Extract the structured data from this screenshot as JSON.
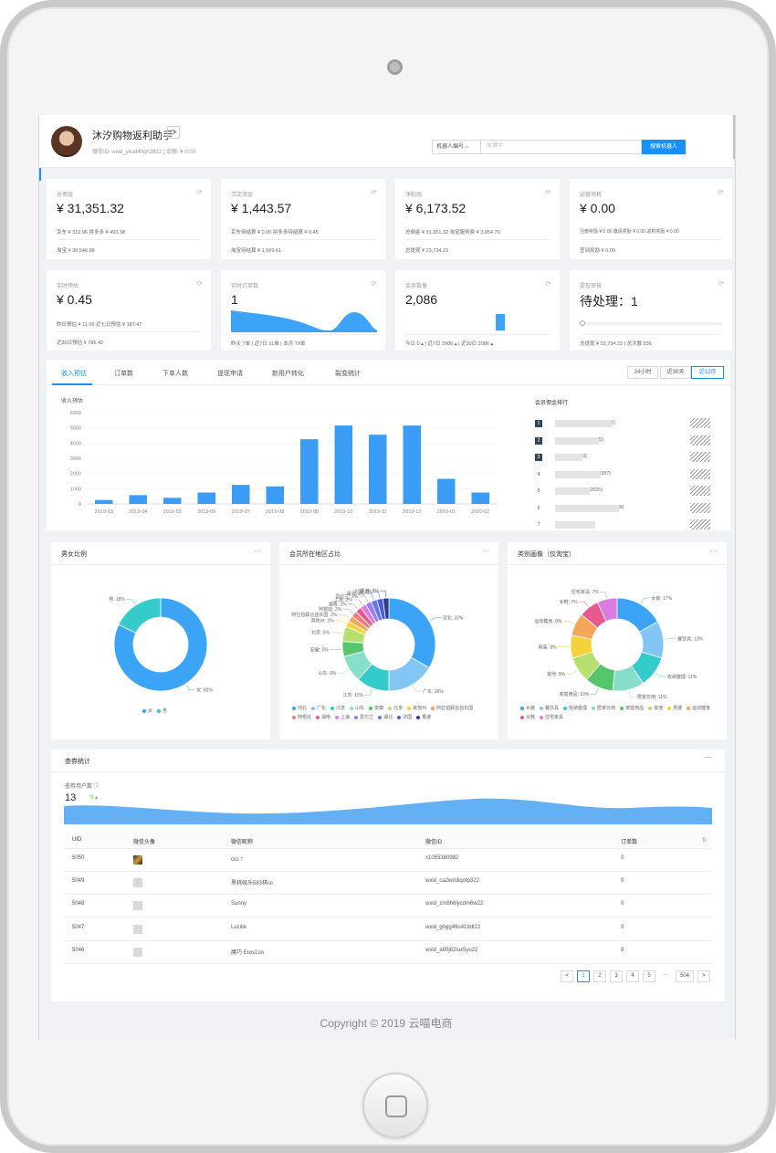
{
  "header": {
    "app_name": "沐汐购物返利助手",
    "sub": "微信ID: wxid_ykud40qh2822  |  余额: ¥ 0.00",
    "search_select": "机器人编号 ⌵",
    "search_placeholder": "关键字",
    "search_button": "搜索机器人"
  },
  "stats": [
    {
      "title": "总佣金",
      "value": "¥ 31,351.32",
      "line1": "京东 ¥ 310.96    拼多多 ¥ 493.38",
      "line2": "淘宝 ¥ 30,546.98"
    },
    {
      "title": "沉淀资金",
      "value": "¥ 1,443.57",
      "line1": "京东待结算 ¥ 0.00    拼多多待结算 ¥ 0.45",
      "line2": "淘宝待结算 ¥ 1,569.61"
    },
    {
      "title": "净利润",
      "value": "¥ 6,173.52",
      "line1": "总佣金 ¥ 31,351.32    淘宝服务费 ¥ 3,054.70",
      "line2": "总提现 ¥ 23,734.23"
    },
    {
      "title": "运营消耗",
      "value": "¥ 0.00",
      "line1": "注册奖励 ¥ 0.00    邀请奖励 ¥ 0.00  返积奖励 ¥ 0.00",
      "line2": "签到奖励 ¥ 0.00"
    },
    {
      "title": "实时预估",
      "value": "¥ 0.45",
      "line1": "昨日预估 ¥ 11.06    近七日预估 ¥ 187.47",
      "line2": "近30日预估 ¥ 786.42"
    },
    {
      "title": "实时订单数",
      "value": "1",
      "line1": "",
      "line2": "昨天 7单  |  近7日 31单  |  本月 79单"
    },
    {
      "title": "会员数量",
      "value": "2,086",
      "line1": "",
      "line2": "今日 0 ▴  |  近7日 2086 ▴  |  近30日 2086 ▴"
    },
    {
      "title": "提现审核",
      "value": "待处理：1",
      "line1": "",
      "line2": "总提现 ¥ 23,734.23  |  总次数 536"
    }
  ],
  "tabs": [
    "收入预估",
    "订单数",
    "下单人数",
    "提现申请",
    "新用户转化",
    "裂变统计"
  ],
  "ranges": [
    "24小时",
    "近30天",
    "近12月"
  ],
  "chart_data": [
    {
      "type": "bar",
      "title": "收入预估",
      "categories": [
        "2019-03",
        "2019-04",
        "2019-05",
        "2019-06",
        "2019-07",
        "2019-08",
        "2019-09",
        "2019-10",
        "2019-11",
        "2019-12",
        "2020-01",
        "2020-02"
      ],
      "values": [
        260,
        580,
        400,
        750,
        1250,
        1150,
        4250,
        5150,
        4550,
        5150,
        1650,
        750
      ],
      "ylim": [
        0,
        6000
      ],
      "yticks": [
        "0",
        "1000",
        "2000",
        "3000",
        "4000",
        "5000",
        "6000"
      ]
    },
    {
      "type": "pie",
      "title": "男女比例",
      "labels": [
        "女",
        "男"
      ],
      "values": [
        82,
        18
      ],
      "slice_labels": [
        "女: 82%",
        "男: 18%"
      ]
    },
    {
      "type": "pie",
      "title": "会员所在地区占比",
      "labels": [
        "河北",
        "广东",
        "江苏",
        "山东",
        "安徽",
        "北京",
        "其他州",
        "阿拉伯联合酋长国",
        "阿根廷",
        "湖南",
        "上海",
        "爱尔兰",
        "湖北",
        "法国",
        "香港"
      ],
      "values": [
        32,
        16,
        11,
        9,
        5,
        5,
        2,
        2,
        2,
        2,
        2,
        2,
        2,
        2,
        2
      ],
      "slice_labels": [
        "河北: 32%",
        "广东: 16%",
        "江苏: 11%",
        "山东: 9%",
        "安徽: 5%",
        "北京: 5%",
        "其他州: 2%",
        "阿拉伯联合酋长国: 2%",
        "阿根廷: 2%",
        "湖南: 2%",
        "上海: 2%",
        "爱尔兰: 2%",
        "湖北: 2%",
        "法国: 2%",
        "香港: 2%"
      ]
    },
    {
      "type": "pie",
      "title": "类别画像（仅淘宝）",
      "labels": [
        "女装",
        "餐饮具",
        "收纳整理",
        "居家日用",
        "家庭用品",
        "其他",
        "男装",
        "运动健身",
        "女鞋",
        "住宅家具"
      ],
      "values": [
        17,
        13,
        11,
        11,
        10,
        9,
        8,
        8,
        7,
        7
      ],
      "slice_labels": [
        "女装: 17%",
        "餐饮具: 13%",
        "收纳整理: 11%",
        "居家日用: 11%",
        "家庭用品: 10%",
        "其他: 9%",
        "男装: 8%",
        "运动健身: 8%",
        "女鞋: 7%",
        "住宅家具: 7%"
      ]
    }
  ],
  "colors": {
    "primary": "#1890ff",
    "bar": "#3b9cf5",
    "gender": [
      "#3ba4f7",
      "#36cbcb"
    ],
    "region": [
      "#3ba4f7",
      "#83c6f5",
      "#36cbcb",
      "#87dfc9",
      "#57c56b",
      "#b6e06e",
      "#f5d13c",
      "#f6a65a",
      "#f37d7d",
      "#e85a8f",
      "#d97ee0",
      "#9c7ef0",
      "#6574f2",
      "#4a5fd6",
      "#2f3a8f"
    ],
    "category": [
      "#3ba4f7",
      "#83c6f5",
      "#36cbcb",
      "#87dfc9",
      "#57c56b",
      "#b6e06e",
      "#f5d13c",
      "#f6a65a",
      "#e85a8f",
      "#d97ee0"
    ]
  },
  "ranking": {
    "title": "会员佣金排行",
    "rows": [
      {
        "rank": "1",
        "name": "(",
        "suffix": ")"
      },
      {
        "rank": "2",
        "name": "",
        "suffix": "5)"
      },
      {
        "rank": "3",
        "name": "",
        "suffix": "3)"
      },
      {
        "rank": "4",
        "name": "",
        "suffix": "337)"
      },
      {
        "rank": "5",
        "name": "2",
        "suffix": "025)"
      },
      {
        "rank": "6",
        "name": "",
        "suffix": "X)"
      },
      {
        "rank": "7",
        "name": "",
        "suffix": ""
      }
    ]
  },
  "pies": {
    "gender_title": "男女比例",
    "region_title": "会员所在地区占比",
    "category_title": "类别画像（仅淘宝）",
    "more": "···"
  },
  "coupon": {
    "title": "查券统计",
    "minimize": "—",
    "user_label": "查券用户数 ⓘ",
    "count": "13",
    "delta": "0 ▴",
    "columns": [
      "UID",
      "微信头像",
      "微信昵称",
      "微信ID",
      "订单数"
    ],
    "sort_icon": "⇅",
    "rows": [
      {
        "uid": "5050",
        "avatar": "photo",
        "nickname": "cici 🡑",
        "wxid": "x1055380982",
        "orders": "0"
      },
      {
        "uid": "5049",
        "avatar": "empty",
        "nickname": "黑桃娱乐583棋cc",
        "wxid": "wxid_ca2wirdiqotp322",
        "orders": "0"
      },
      {
        "uid": "5048",
        "avatar": "empty",
        "nickname": "Sunny",
        "wxid": "wxid_zm8h6lycdm6w22",
        "orders": "0"
      },
      {
        "uid": "5047",
        "avatar": "empty",
        "nickname": "Lucille",
        "wxid": "wxid_g0gg49u419dl22",
        "orders": "0"
      },
      {
        "uid": "5046",
        "avatar": "empty",
        "nickname": "魔巧 Eros1on",
        "wxid": "wxid_a90j82lux5yu22",
        "orders": "0"
      }
    ],
    "pager": {
      "prev": "<",
      "pages": [
        "1",
        "2",
        "3",
        "4",
        "5"
      ],
      "dots": "···",
      "last": "504",
      "next": ">"
    }
  },
  "footer": "Copyright © 2019 云喵电商"
}
